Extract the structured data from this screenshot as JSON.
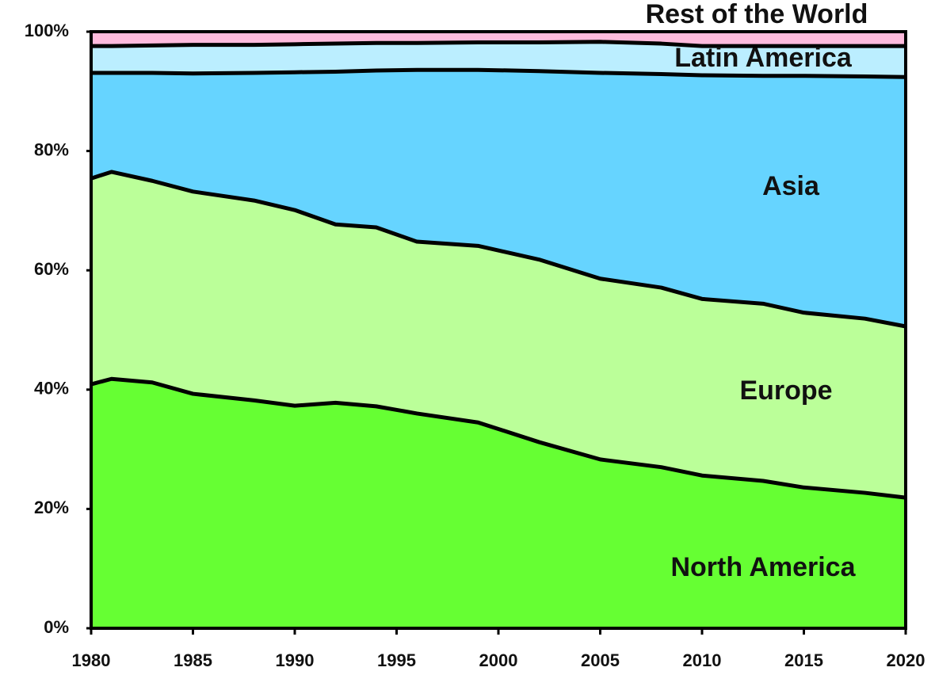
{
  "chart_data": {
    "type": "stacked_area",
    "x": [
      1980,
      1981,
      1983,
      1985,
      1988,
      1990,
      1992,
      1994,
      1996,
      1999,
      2002,
      2005,
      2008,
      2010,
      2013,
      2015,
      2018,
      2020
    ],
    "series": [
      {
        "name": "North America",
        "color": "#66ff33",
        "values": [
          40.9,
          41.8,
          41.2,
          39.3,
          38.2,
          37.3,
          37.8,
          37.2,
          36.0,
          34.5,
          31.2,
          28.3,
          27.0,
          25.6,
          24.7,
          23.6,
          22.7,
          21.9
        ]
      },
      {
        "name": "Europe",
        "color": "#bbff99",
        "values": [
          34.5,
          34.7,
          33.8,
          33.9,
          33.5,
          32.8,
          29.9,
          30.0,
          28.8,
          29.6,
          30.6,
          30.3,
          30.1,
          29.6,
          29.7,
          29.3,
          29.2,
          28.7
        ]
      },
      {
        "name": "Asia",
        "color": "#66d4ff",
        "values": [
          17.7,
          16.6,
          18.1,
          19.8,
          21.4,
          23.1,
          25.6,
          26.3,
          28.8,
          29.5,
          31.6,
          34.5,
          35.8,
          37.5,
          38.2,
          39.7,
          40.6,
          41.8
        ]
      },
      {
        "name": "Latin America",
        "color": "#bbeeff",
        "values": [
          4.5,
          4.5,
          4.6,
          4.8,
          4.7,
          4.7,
          4.7,
          4.6,
          4.5,
          4.6,
          4.8,
          5.2,
          5.1,
          4.9,
          5.0,
          5.0,
          5.1,
          5.2
        ]
      },
      {
        "name": "Rest of the World",
        "color": "#ffbbdd",
        "values": [
          2.4,
          2.4,
          2.3,
          2.2,
          2.2,
          2.1,
          2.0,
          1.9,
          1.9,
          1.8,
          1.8,
          1.7,
          2.0,
          2.4,
          2.4,
          2.4,
          2.4,
          2.4
        ]
      }
    ],
    "xlim": [
      1980,
      2020
    ],
    "xticks": [
      1980,
      1985,
      1990,
      1995,
      2000,
      2005,
      2010,
      2015,
      2020
    ],
    "ylim": [
      0,
      100
    ],
    "yticks": [
      {
        "value": 0,
        "label": "0%"
      },
      {
        "value": 20,
        "label": "20%"
      },
      {
        "value": 40,
        "label": "40%"
      },
      {
        "value": 60,
        "label": "60%"
      },
      {
        "value": 80,
        "label": "80%"
      },
      {
        "value": 100,
        "label": "100%"
      }
    ]
  }
}
